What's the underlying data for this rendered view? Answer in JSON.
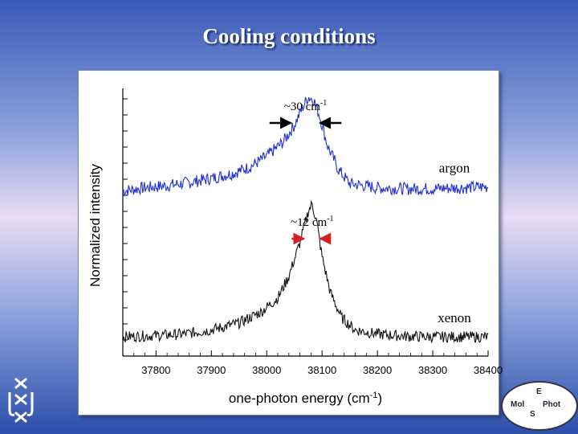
{
  "slide": {
    "title": "Cooling conditions"
  },
  "chart_data": {
    "type": "line",
    "xlabel": "one-photon energy (cm",
    "xlabel_sup": "-1",
    "xlabel_suffix": ")",
    "ylabel": "Normalized intensity",
    "xlim": [
      37740,
      38400
    ],
    "x_ticks": [
      37800,
      37900,
      38000,
      38100,
      38200,
      38300,
      38400
    ],
    "y_scale": "arbitrary",
    "grid": false,
    "series": [
      {
        "name": "argon",
        "color": "#1f2fd6",
        "points": [
          [
            37740,
            0.35
          ],
          [
            37780,
            0.38
          ],
          [
            37820,
            0.4
          ],
          [
            37860,
            0.43
          ],
          [
            37900,
            0.47
          ],
          [
            37940,
            0.52
          ],
          [
            37970,
            0.58
          ],
          [
            38000,
            0.68
          ],
          [
            38030,
            0.82
          ],
          [
            38050,
            0.98
          ],
          [
            38065,
            1.15
          ],
          [
            38075,
            1.25
          ],
          [
            38085,
            1.22
          ],
          [
            38095,
            1.08
          ],
          [
            38110,
            0.78
          ],
          [
            38130,
            0.55
          ],
          [
            38150,
            0.42
          ],
          [
            38200,
            0.38
          ],
          [
            38250,
            0.37
          ],
          [
            38300,
            0.37
          ],
          [
            38350,
            0.38
          ],
          [
            38400,
            0.39
          ]
        ]
      },
      {
        "name": "xenon",
        "color": "#111111",
        "points": [
          [
            37740,
            0.04
          ],
          [
            37800,
            0.05
          ],
          [
            37850,
            0.06
          ],
          [
            37900,
            0.09
          ],
          [
            37950,
            0.14
          ],
          [
            37990,
            0.22
          ],
          [
            38020,
            0.32
          ],
          [
            38040,
            0.48
          ],
          [
            38060,
            0.72
          ],
          [
            38075,
            0.95
          ],
          [
            38082,
            1.0
          ],
          [
            38090,
            0.88
          ],
          [
            38100,
            0.62
          ],
          [
            38115,
            0.36
          ],
          [
            38135,
            0.18
          ],
          [
            38160,
            0.09
          ],
          [
            38200,
            0.06
          ],
          [
            38250,
            0.045
          ],
          [
            38300,
            0.04
          ],
          [
            38350,
            0.04
          ],
          [
            38400,
            0.04
          ]
        ]
      }
    ],
    "annotations": [
      {
        "text": "~30 cm",
        "sup": "-1",
        "color": "#000000",
        "x": 38070,
        "arrow_from": 38005,
        "arrow_to": 38135,
        "y_data": 1.0
      },
      {
        "text": "~12 cm",
        "sup": "-1",
        "color": "#000000",
        "x": 38082,
        "arrow_from": 38045,
        "arrow_to": 38110,
        "y_data": 0.75
      }
    ]
  },
  "logos": {
    "right_top": "E",
    "right_left": "Mol",
    "right_right": "Phot",
    "right_bottom": "S"
  }
}
